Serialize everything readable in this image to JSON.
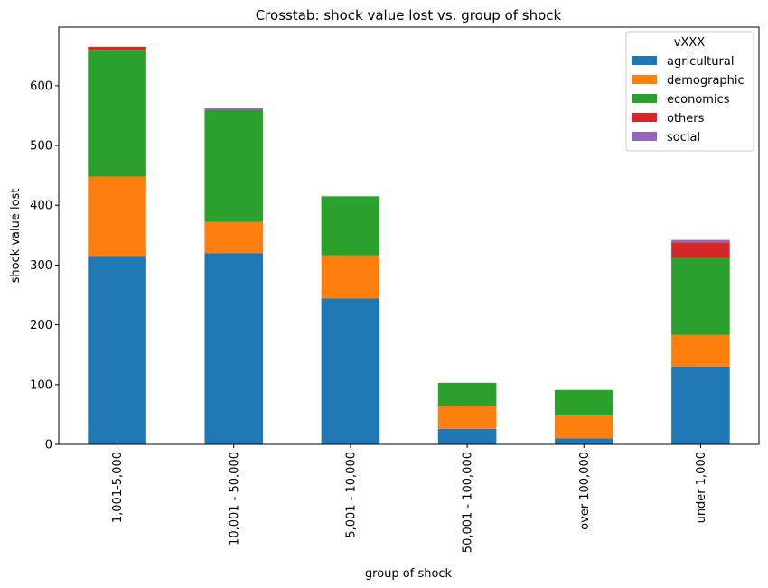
{
  "chart_data": {
    "type": "bar",
    "stacked": true,
    "title": "Crosstab: shock value lost vs. group of shock",
    "xlabel": "group of shock",
    "ylabel": "shock value lost",
    "categories": [
      "1,001-5,000",
      "10,001 - 50,000",
      "5,001 - 10,000",
      "50,001 - 100,000",
      "over 100,000",
      "under 1,000"
    ],
    "series": [
      {
        "name": "agricultural",
        "color": "#1f77b4",
        "values": [
          315,
          320,
          244,
          26,
          10,
          130
        ]
      },
      {
        "name": "demographic",
        "color": "#ff7f0e",
        "values": [
          133,
          52,
          72,
          38,
          38,
          53
        ]
      },
      {
        "name": "economics",
        "color": "#2ca02c",
        "values": [
          212,
          187,
          99,
          39,
          43,
          129
        ]
      },
      {
        "name": "others",
        "color": "#d62728",
        "values": [
          5,
          0,
          0,
          0,
          0,
          26
        ]
      },
      {
        "name": "social",
        "color": "#9467bd",
        "values": [
          0,
          3,
          0,
          0,
          0,
          4
        ]
      }
    ],
    "yticks": [
      0,
      100,
      200,
      300,
      400,
      500,
      600
    ],
    "ylim": [
      0,
      698
    ],
    "grid": false,
    "legend": {
      "title": "vXXX",
      "position": "top-right"
    }
  }
}
